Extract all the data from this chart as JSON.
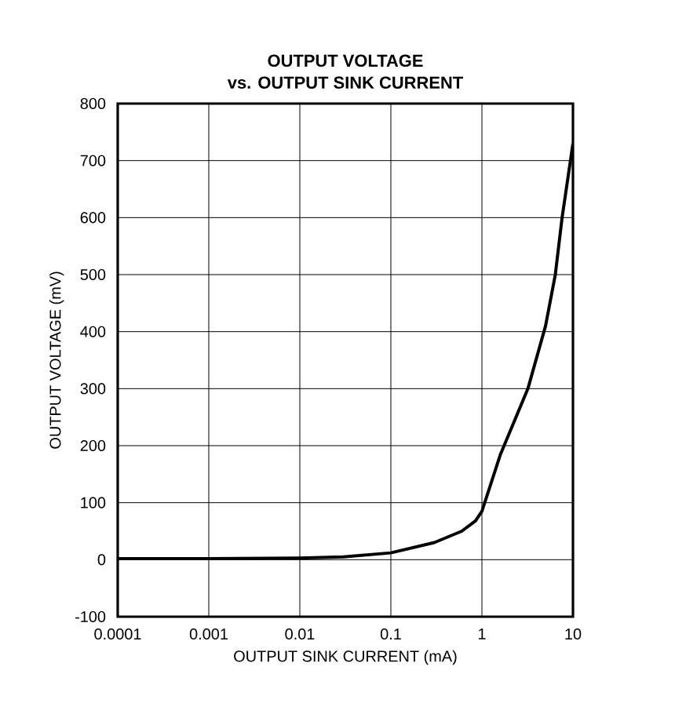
{
  "chart_data": {
    "type": "line",
    "title": "OUTPUT VOLTAGE",
    "subtitle": "vs. OUTPUT SINK CURRENT",
    "xlabel": "OUTPUT SINK CURRENT (mA)",
    "ylabel": "OUTPUT VOLTAGE (mV)",
    "log": "x",
    "grid": true,
    "marker": "none",
    "line_style": "solid",
    "xlim": [
      0.0001,
      10
    ],
    "xticks": [
      0.0001,
      0.001,
      0.01,
      0.1,
      1,
      10
    ],
    "ylim": [
      -100,
      800
    ],
    "yticks": [
      -100,
      0,
      100,
      200,
      300,
      400,
      500,
      600,
      700,
      800
    ],
    "series": [
      {
        "color": "#000000",
        "x": [
          0.0001,
          0.001,
          0.01,
          0.03,
          0.1,
          0.3,
          0.6,
          0.85,
          1,
          1.6,
          3.2,
          5,
          6.4,
          7.6,
          10
        ],
        "values": [
          2,
          2,
          3,
          5,
          12,
          30,
          50,
          68,
          85,
          185,
          300,
          410,
          500,
          600,
          730
        ]
      }
    ]
  }
}
